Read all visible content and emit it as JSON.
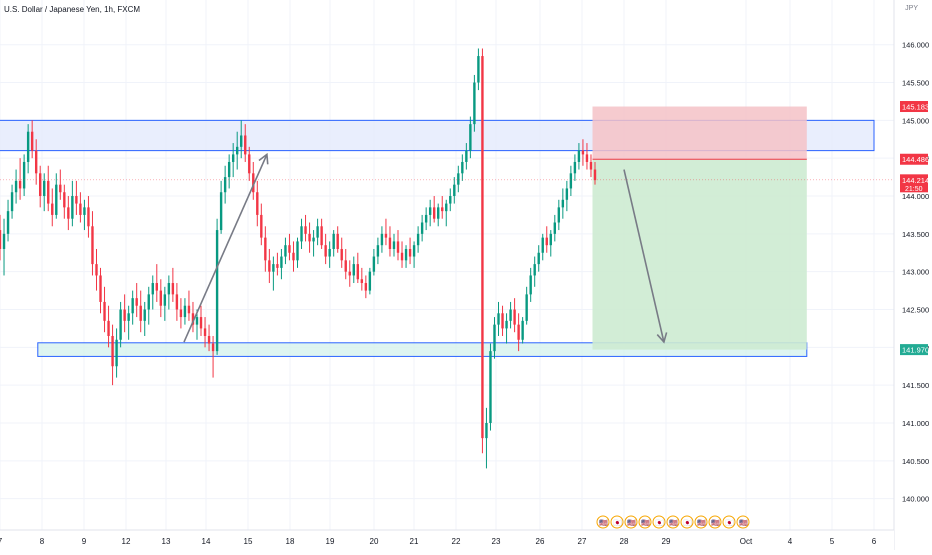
{
  "header": {
    "symbol_title": "U.S. Dollar / Japanese Yen, 1h, FXCM",
    "currency": "JPY"
  },
  "chart_data": {
    "type": "candlestick",
    "title": "U.S. Dollar / Japanese Yen, 1h, FXCM",
    "ylim": [
      139.85,
      146.3
    ],
    "y_ticks": [
      "146.000",
      "145.500",
      "145.000",
      "144.500",
      "144.000",
      "143.500",
      "143.000",
      "142.500",
      "142.000",
      "141.500",
      "141.000",
      "140.500",
      "140.000"
    ],
    "x_ticks": [
      {
        "label": "7",
        "x": 0
      },
      {
        "label": "8",
        "x": 1
      },
      {
        "label": "9",
        "x": 2
      },
      {
        "label": "12",
        "x": 3
      },
      {
        "label": "13",
        "x": 4
      },
      {
        "label": "14",
        "x": 5
      },
      {
        "label": "15",
        "x": 6
      },
      {
        "label": "18",
        "x": 7
      },
      {
        "label": "19",
        "x": 8
      },
      {
        "label": "20",
        "x": 9
      },
      {
        "label": "21",
        "x": 10
      },
      {
        "label": "22",
        "x": 11
      },
      {
        "label": "23",
        "x": 12
      },
      {
        "label": "26",
        "x": 13
      },
      {
        "label": "27",
        "x": 14
      },
      {
        "label": "28",
        "x": 15
      },
      {
        "label": "29",
        "x": 16
      },
      {
        "label": "Oct",
        "x": 17
      },
      {
        "label": "4",
        "x": 18
      },
      {
        "label": "5",
        "x": 19
      },
      {
        "label": "6",
        "x": 20
      }
    ],
    "price_tags": [
      {
        "label": "145.183",
        "value": 145.183,
        "color": "#f23645"
      },
      {
        "label": "144.486",
        "value": 144.486,
        "color": "#f23645"
      },
      {
        "label": "144.214",
        "sub": "21:50",
        "value": 144.214,
        "color": "#f23645"
      },
      {
        "label": "141.970",
        "value": 141.97,
        "color": "#22ab94"
      }
    ],
    "zones": [
      {
        "name": "resistance",
        "y1": 144.6,
        "y2": 145.0,
        "x1": -0.2,
        "x2": 22,
        "fill": "#e3eafc",
        "stroke": "#2962ff"
      },
      {
        "name": "support",
        "y1": 141.88,
        "y2": 142.06,
        "x1": 0.9,
        "x2": 18.4,
        "fill": "#d6f3ee",
        "stroke": "#2962ff"
      }
    ],
    "position": {
      "entry": 144.486,
      "stop": 145.183,
      "target": 141.97,
      "x1": 14.25,
      "x2": 18.4,
      "stop_color": "#f5c2c7",
      "target_color": "#cdebd1"
    },
    "arrows": [
      {
        "from": [
          4.45,
          142.07
        ],
        "to": [
          6.45,
          144.55
        ]
      },
      {
        "from": [
          15.0,
          144.35
        ],
        "to": [
          15.95,
          142.07
        ]
      }
    ],
    "candles": [
      [
        143.55,
        143.75,
        143.15,
        143.3
      ],
      [
        143.3,
        143.7,
        142.95,
        143.5
      ],
      [
        143.5,
        143.95,
        143.4,
        143.8
      ],
      [
        143.8,
        144.15,
        143.7,
        144.05
      ],
      [
        144.05,
        144.35,
        143.9,
        144.2
      ],
      [
        144.2,
        144.5,
        143.95,
        144.1
      ],
      [
        144.1,
        144.55,
        144.0,
        144.45
      ],
      [
        144.45,
        144.95,
        144.3,
        144.85
      ],
      [
        144.85,
        145.0,
        144.5,
        144.6
      ],
      [
        144.6,
        144.75,
        144.15,
        144.3
      ],
      [
        144.3,
        144.4,
        143.85,
        144.0
      ],
      [
        144.0,
        144.3,
        143.8,
        144.2
      ],
      [
        144.2,
        144.4,
        143.8,
        143.9
      ],
      [
        143.9,
        144.1,
        143.6,
        143.75
      ],
      [
        143.75,
        144.3,
        143.7,
        144.15
      ],
      [
        144.15,
        144.35,
        143.95,
        144.05
      ],
      [
        144.05,
        144.15,
        143.7,
        143.85
      ],
      [
        143.85,
        144.0,
        143.55,
        143.7
      ],
      [
        143.7,
        144.2,
        143.6,
        144.0
      ],
      [
        144.0,
        144.2,
        143.75,
        143.9
      ],
      [
        143.9,
        144.05,
        143.65,
        143.75
      ],
      [
        143.75,
        143.95,
        143.55,
        143.85
      ],
      [
        143.85,
        144.0,
        143.45,
        143.6
      ],
      [
        143.6,
        143.8,
        142.95,
        143.1
      ],
      [
        143.1,
        143.3,
        142.75,
        142.95
      ],
      [
        142.95,
        143.05,
        142.45,
        142.6
      ],
      [
        142.6,
        142.8,
        142.2,
        142.35
      ],
      [
        142.35,
        142.55,
        142.0,
        142.15
      ],
      [
        142.15,
        142.3,
        141.5,
        141.75
      ],
      [
        141.75,
        142.25,
        141.6,
        142.1
      ],
      [
        142.1,
        142.6,
        142.0,
        142.5
      ],
      [
        142.5,
        142.7,
        142.2,
        142.35
      ],
      [
        142.35,
        142.55,
        142.1,
        142.45
      ],
      [
        142.45,
        142.75,
        142.3,
        142.65
      ],
      [
        142.65,
        142.85,
        142.4,
        142.55
      ],
      [
        142.55,
        142.75,
        142.2,
        142.35
      ],
      [
        142.35,
        142.6,
        142.15,
        142.5
      ],
      [
        142.5,
        142.8,
        142.3,
        142.7
      ],
      [
        142.7,
        142.95,
        142.5,
        142.85
      ],
      [
        142.85,
        143.1,
        142.6,
        142.75
      ],
      [
        142.75,
        142.9,
        142.4,
        142.55
      ],
      [
        142.55,
        142.8,
        142.35,
        142.7
      ],
      [
        142.7,
        142.95,
        142.5,
        142.85
      ],
      [
        142.85,
        143.05,
        142.6,
        142.7
      ],
      [
        142.7,
        142.85,
        142.35,
        142.5
      ],
      [
        142.5,
        142.65,
        142.25,
        142.4
      ],
      [
        142.4,
        142.65,
        142.3,
        142.55
      ],
      [
        142.55,
        142.75,
        142.35,
        142.45
      ],
      [
        142.45,
        142.6,
        142.2,
        142.3
      ],
      [
        142.3,
        142.5,
        142.1,
        142.4
      ],
      [
        142.4,
        142.55,
        142.15,
        142.25
      ],
      [
        142.25,
        142.4,
        142.0,
        142.15
      ],
      [
        142.15,
        142.3,
        141.95,
        142.05
      ],
      [
        142.05,
        142.15,
        141.6,
        141.95
      ],
      [
        141.95,
        143.7,
        141.9,
        143.55
      ],
      [
        143.55,
        144.2,
        143.5,
        144.05
      ],
      [
        144.05,
        144.4,
        143.9,
        144.25
      ],
      [
        144.25,
        144.55,
        144.1,
        144.45
      ],
      [
        144.45,
        144.7,
        144.25,
        144.55
      ],
      [
        144.55,
        144.85,
        144.35,
        144.65
      ],
      [
        144.65,
        145.0,
        144.5,
        144.8
      ],
      [
        144.8,
        144.95,
        144.45,
        144.55
      ],
      [
        144.55,
        144.65,
        144.2,
        144.3
      ],
      [
        144.3,
        144.45,
        143.95,
        144.05
      ],
      [
        144.05,
        144.2,
        143.6,
        143.75
      ],
      [
        143.75,
        143.9,
        143.35,
        143.45
      ],
      [
        143.45,
        143.6,
        143.0,
        143.15
      ],
      [
        143.15,
        143.3,
        142.85,
        143.0
      ],
      [
        143.0,
        143.2,
        142.75,
        143.1
      ],
      [
        143.1,
        143.25,
        142.95,
        143.05
      ],
      [
        143.05,
        143.3,
        142.9,
        143.2
      ],
      [
        143.2,
        143.45,
        143.1,
        143.35
      ],
      [
        143.35,
        143.5,
        143.15,
        143.25
      ],
      [
        143.25,
        143.4,
        143.0,
        143.15
      ],
      [
        143.15,
        143.45,
        143.05,
        143.4
      ],
      [
        143.4,
        143.7,
        143.3,
        143.6
      ],
      [
        143.6,
        143.75,
        143.4,
        143.5
      ],
      [
        143.5,
        143.65,
        143.25,
        143.4
      ],
      [
        143.4,
        143.55,
        143.2,
        143.45
      ],
      [
        143.45,
        143.7,
        143.35,
        143.6
      ],
      [
        143.6,
        143.7,
        143.3,
        143.35
      ],
      [
        143.35,
        143.5,
        143.1,
        143.2
      ],
      [
        143.2,
        143.4,
        143.05,
        143.3
      ],
      [
        143.3,
        143.55,
        143.2,
        143.5
      ],
      [
        143.5,
        143.6,
        143.25,
        143.3
      ],
      [
        143.3,
        143.45,
        143.05,
        143.15
      ],
      [
        143.15,
        143.3,
        142.9,
        143.0
      ],
      [
        143.0,
        143.15,
        142.8,
        142.95
      ],
      [
        142.95,
        143.2,
        142.85,
        143.1
      ],
      [
        143.1,
        143.25,
        142.85,
        142.9
      ],
      [
        142.9,
        143.05,
        142.75,
        142.85
      ],
      [
        142.85,
        142.95,
        142.65,
        142.75
      ],
      [
        142.75,
        143.05,
        142.7,
        143.0
      ],
      [
        143.0,
        143.3,
        142.95,
        143.2
      ],
      [
        143.2,
        143.45,
        143.1,
        143.35
      ],
      [
        143.35,
        143.6,
        143.25,
        143.5
      ],
      [
        143.5,
        143.7,
        143.35,
        143.45
      ],
      [
        143.45,
        143.6,
        143.2,
        143.3
      ],
      [
        143.3,
        143.5,
        143.2,
        143.4
      ],
      [
        143.4,
        143.55,
        143.15,
        143.25
      ],
      [
        143.25,
        143.4,
        143.05,
        143.15
      ],
      [
        143.15,
        143.35,
        143.05,
        143.3
      ],
      [
        143.3,
        143.45,
        143.1,
        143.2
      ],
      [
        143.2,
        143.4,
        143.05,
        143.35
      ],
      [
        143.35,
        143.6,
        143.25,
        143.5
      ],
      [
        143.5,
        143.75,
        143.4,
        143.65
      ],
      [
        143.65,
        143.85,
        143.55,
        143.75
      ],
      [
        143.75,
        143.95,
        143.6,
        143.85
      ],
      [
        143.85,
        144.0,
        143.65,
        143.7
      ],
      [
        143.7,
        143.9,
        143.6,
        143.85
      ],
      [
        143.85,
        144.0,
        143.7,
        143.8
      ],
      [
        143.8,
        143.95,
        143.6,
        143.9
      ],
      [
        143.9,
        144.1,
        143.8,
        144.0
      ],
      [
        144.0,
        144.25,
        143.9,
        144.15
      ],
      [
        144.15,
        144.4,
        144.05,
        144.3
      ],
      [
        144.3,
        144.55,
        144.2,
        144.45
      ],
      [
        144.45,
        144.7,
        144.35,
        144.6
      ],
      [
        144.6,
        145.05,
        144.5,
        144.95
      ],
      [
        144.95,
        145.6,
        144.85,
        145.5
      ],
      [
        145.5,
        145.95,
        145.4,
        145.85
      ],
      [
        145.85,
        145.95,
        140.6,
        140.8
      ],
      [
        140.8,
        141.2,
        140.4,
        141.0
      ],
      [
        141.0,
        142.05,
        140.9,
        141.95
      ],
      [
        141.95,
        142.4,
        141.85,
        142.3
      ],
      [
        142.3,
        142.6,
        142.15,
        142.45
      ],
      [
        142.45,
        142.55,
        142.15,
        142.25
      ],
      [
        142.25,
        142.45,
        142.05,
        142.35
      ],
      [
        142.35,
        142.6,
        142.25,
        142.5
      ],
      [
        142.5,
        142.65,
        142.2,
        142.3
      ],
      [
        142.3,
        142.45,
        141.95,
        142.1
      ],
      [
        142.1,
        142.4,
        142.05,
        142.35
      ],
      [
        142.35,
        142.8,
        142.3,
        142.7
      ],
      [
        142.7,
        143.05,
        142.6,
        142.95
      ],
      [
        142.95,
        143.2,
        142.8,
        143.1
      ],
      [
        143.1,
        143.35,
        143.0,
        143.25
      ],
      [
        143.25,
        143.5,
        143.15,
        143.45
      ],
      [
        143.45,
        143.6,
        143.25,
        143.35
      ],
      [
        143.35,
        143.55,
        143.2,
        143.5
      ],
      [
        143.5,
        143.75,
        143.4,
        143.65
      ],
      [
        143.65,
        143.95,
        143.55,
        143.85
      ],
      [
        143.85,
        144.1,
        143.7,
        143.95
      ],
      [
        143.95,
        144.2,
        143.8,
        144.1
      ],
      [
        144.1,
        144.4,
        144.0,
        144.3
      ],
      [
        144.3,
        144.55,
        144.2,
        144.45
      ],
      [
        144.45,
        144.7,
        144.35,
        144.6
      ],
      [
        144.6,
        144.75,
        144.4,
        144.55
      ],
      [
        144.55,
        144.7,
        144.35,
        144.45
      ],
      [
        144.45,
        144.55,
        144.25,
        144.35
      ],
      [
        144.35,
        144.45,
        144.15,
        144.21
      ]
    ]
  },
  "events": {
    "glyphs": [
      "🇺🇸",
      "🇯🇵",
      "🇺🇸",
      "🇺🇸",
      "🇯🇵",
      "🇺🇸",
      "🇯🇵",
      "🇺🇸",
      "🇺🇸",
      "🇯🇵",
      "🇺🇸"
    ]
  }
}
